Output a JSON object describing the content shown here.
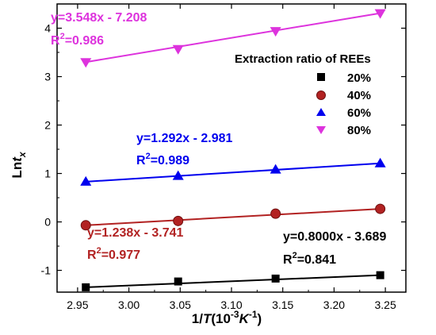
{
  "chart_data": {
    "type": "scatter",
    "xlabel": {
      "pre": "1/",
      "var": "T",
      "post": "(10",
      "sup": "-3",
      "unit": "K",
      "sup2": "-1",
      "close": ")"
    },
    "ylabel": {
      "pre": "Ln",
      "var": "t",
      "sub": "x"
    },
    "xlim": [
      2.93,
      3.27
    ],
    "ylim": [
      -1.45,
      4.5
    ],
    "xticks": [
      "2.95",
      "3.00",
      "3.05",
      "3.10",
      "3.15",
      "3.20",
      "3.25"
    ],
    "yticks": [
      "-1",
      "0",
      "1",
      "2",
      "3",
      "4"
    ],
    "legend": {
      "title": "Extraction ratio of REEs",
      "position": "top-right"
    },
    "grid": false,
    "series": [
      {
        "name": "20%",
        "marker": "square",
        "color": "#000000",
        "x": [
          2.958,
          3.048,
          3.143,
          3.245
        ],
        "y": [
          -1.35,
          -1.23,
          -1.17,
          -1.1
        ],
        "fit": {
          "slope": 0.8,
          "intercept": -3.689
        },
        "equation": "y=0.8000x - 3.689",
        "r2_value": "=0.841"
      },
      {
        "name": "40%",
        "marker": "circle",
        "color": "#b22222",
        "x": [
          2.958,
          3.048,
          3.143,
          3.245
        ],
        "y": [
          -0.07,
          0.02,
          0.17,
          0.27
        ],
        "fit": {
          "slope": 1.238,
          "intercept": -3.741
        },
        "equation": "y=1.238x - 3.741",
        "r2_value": "=0.977"
      },
      {
        "name": "60%",
        "marker": "triangle-up",
        "color": "#0000ee",
        "x": [
          2.958,
          3.048,
          3.143,
          3.245
        ],
        "y": [
          0.83,
          0.95,
          1.08,
          1.21
        ],
        "fit": {
          "slope": 1.292,
          "intercept": -2.981
        },
        "equation": "y=1.292x - 2.981",
        "r2_value": "=0.989"
      },
      {
        "name": "80%",
        "marker": "triangle-down",
        "color": "#dd33dd",
        "x": [
          2.958,
          3.048,
          3.143,
          3.245
        ],
        "y": [
          3.3,
          3.57,
          3.94,
          4.31
        ],
        "fit": {
          "slope": 3.548,
          "intercept": -7.208
        },
        "equation": "y=3.548x - 7.208",
        "r2_value": "=0.986"
      }
    ]
  }
}
